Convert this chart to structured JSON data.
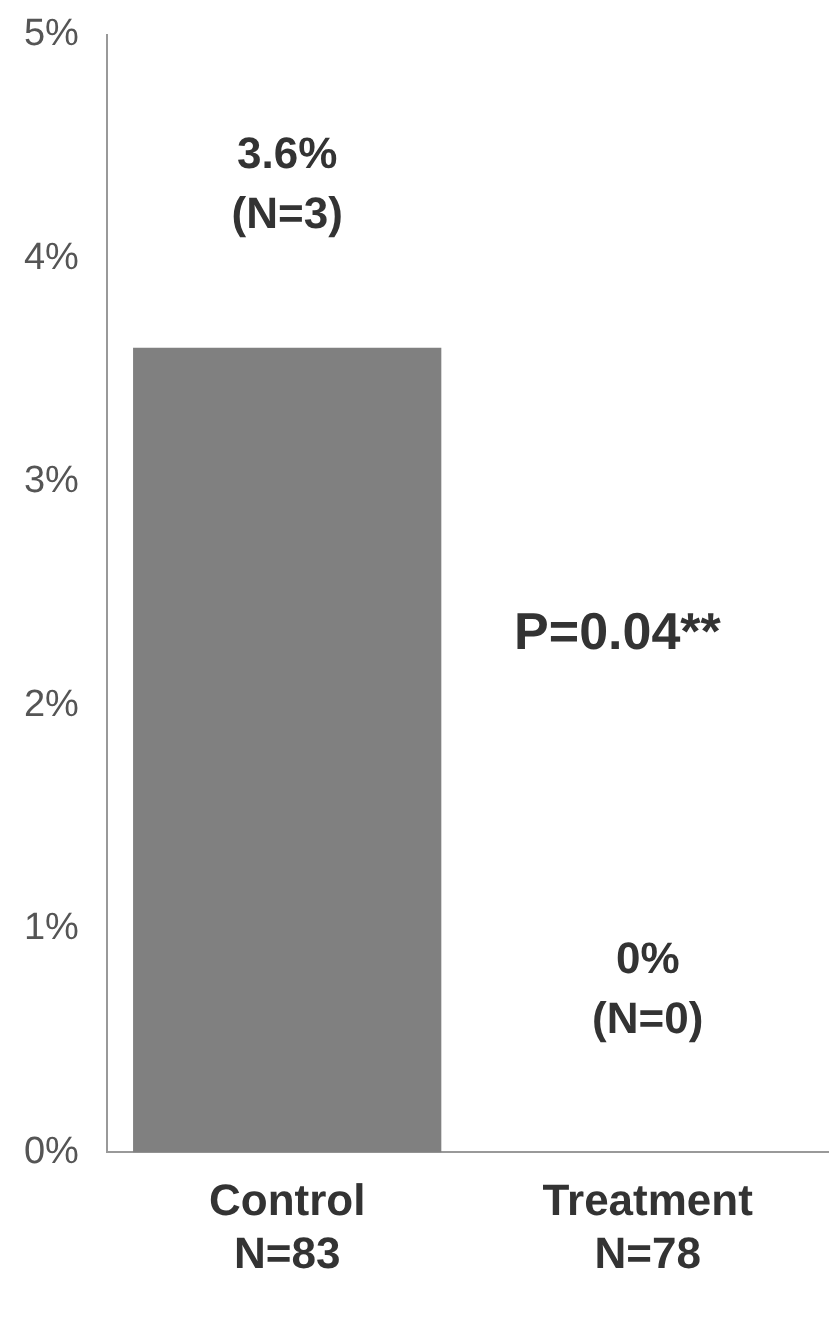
{
  "chart_data": {
    "type": "bar",
    "categories": [
      "Control\nN=83",
      "Treatment\nN=78"
    ],
    "values": [
      3.6,
      0
    ],
    "color": "#808080",
    "value_labels": [
      "3.6%\n(N=3)",
      "0%\n(N=0)"
    ],
    "annotations": [
      "P=0.04**"
    ],
    "ylim": [
      0,
      5
    ],
    "yticks": [
      {
        "value": 0,
        "label": "0%"
      },
      {
        "value": 1,
        "label": "1%"
      },
      {
        "value": 2,
        "label": "2%"
      },
      {
        "value": 3,
        "label": "3%"
      },
      {
        "value": 4,
        "label": "4%"
      },
      {
        "value": 5,
        "label": "5%"
      }
    ],
    "grid": false,
    "legend": false
  }
}
